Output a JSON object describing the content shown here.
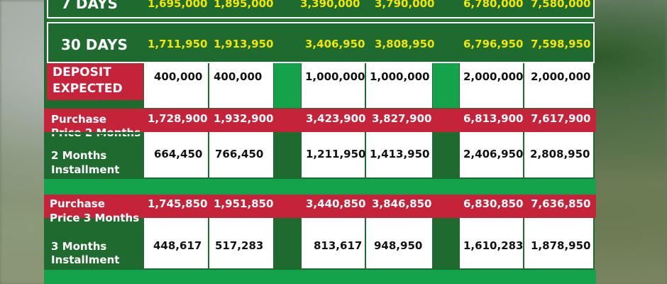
{
  "top_rows": [
    {
      "label": "7 DAYS",
      "values": [
        "1,695,000",
        "1,895,000",
        "3,390,000",
        "3,790,000",
        "6,780,000",
        "7,580,000"
      ]
    },
    {
      "label": "30 DAYS",
      "values": [
        "1,711,950",
        "1,913,950",
        "3,406,950",
        "3,808,950",
        "6,796,950",
        "7,598,950"
      ]
    }
  ],
  "deposit": {
    "label_line1": "DEPOSIT",
    "label_line2": "EXPECTED",
    "values": [
      "400,000",
      "400,000",
      "1,000,000",
      "1,000,000",
      "2,000,000",
      "2,000,000"
    ]
  },
  "purchase_2": {
    "label_line1": "Purchase",
    "label_line2": "Price 2 Months",
    "values": [
      "1,728,900",
      "1,932,900",
      "3,423,900",
      "3,827,900",
      "6,813,900",
      "7,617,900"
    ]
  },
  "installment_2": {
    "label_line1": "2 Months",
    "label_line2": "Installment",
    "values": [
      "664,450",
      "766,450",
      "1,211,950",
      "1,413,950",
      "2,406,950",
      "2,808,950"
    ]
  },
  "purchase_3": {
    "label_line1": "Purchase",
    "label_line2": "Price 3 Months",
    "values": [
      "1,745,850",
      "1,951,850",
      "3,440,850",
      "3,846,850",
      "6,830,850",
      "7,636,850"
    ]
  },
  "installment_3": {
    "label_line1": "3 Months",
    "label_line2": "Installment",
    "values": [
      "448,617",
      "517,283",
      "813,617",
      "948,950",
      "1,610,283",
      "1,878,950"
    ]
  }
}
